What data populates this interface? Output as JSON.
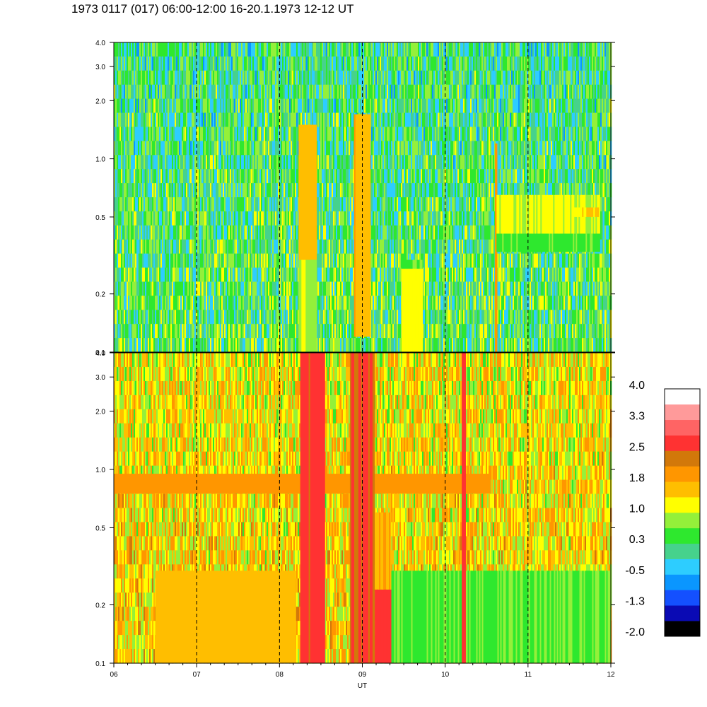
{
  "title": "1973 0117 (017) 06:00-12:00 16-20.1.1973  12-12 UT",
  "chart_data": {
    "type": "heatmap",
    "xlabel": "UT",
    "x_ticks": [
      "06",
      "07",
      "08",
      "09",
      "10",
      "11",
      "12"
    ],
    "xlim": [
      6,
      12
    ],
    "y_scale": "log",
    "panels": [
      {
        "id": "top",
        "ylim": [
          0.1,
          4.0
        ],
        "y_ticks": [
          "0.1",
          "0.2",
          "0.5",
          "1.0",
          "2.0",
          "3.0",
          "4.0"
        ],
        "y_tick_values": [
          0.1,
          0.2,
          0.5,
          1.0,
          2.0,
          3.0,
          4.0
        ],
        "background_level": 0.2,
        "features": [
          {
            "x0": 8.23,
            "x1": 8.45,
            "y0": 0.1,
            "y1": 1.5,
            "level": 1.5
          },
          {
            "x0": 8.23,
            "x1": 8.45,
            "y0": 0.1,
            "y1": 0.3,
            "level": 1.0
          },
          {
            "x0": 8.9,
            "x1": 9.1,
            "y0": 0.12,
            "y1": 1.7,
            "level": 1.6
          },
          {
            "x0": 9.47,
            "x1": 9.73,
            "y0": 0.1,
            "y1": 0.27,
            "level": 1.2
          },
          {
            "x0": 9.47,
            "x1": 9.73,
            "y0": 0.27,
            "y1": 0.3,
            "level": 0.6
          },
          {
            "x0": 10.6,
            "x1": 10.63,
            "y0": 0.1,
            "y1": 1.2,
            "level": 1.9
          },
          {
            "x0": 10.62,
            "x1": 11.87,
            "y0": 0.33,
            "y1": 0.41,
            "level": 0.5
          },
          {
            "x0": 10.62,
            "x1": 11.87,
            "y0": 0.41,
            "y1": 0.65,
            "level": 1.05
          },
          {
            "x0": 11.55,
            "x1": 11.87,
            "y0": 0.5,
            "y1": 0.56,
            "level": 1.4
          }
        ]
      },
      {
        "id": "bottom",
        "ylim": [
          0.1,
          4.0
        ],
        "y_ticks": [
          "0.1",
          "0.2",
          "0.5",
          "1.0",
          "2.0",
          "3.0",
          "4.0"
        ],
        "y_tick_values": [
          0.1,
          0.2,
          0.5,
          1.0,
          2.0,
          3.0,
          4.0
        ],
        "background_level": 1.25,
        "features": [
          {
            "x0": 6.0,
            "x1": 10.55,
            "y0": 0.75,
            "y1": 0.95,
            "level": 1.95
          },
          {
            "x0": 8.25,
            "x1": 8.55,
            "y0": 0.1,
            "y1": 4.0,
            "level": 2.65
          },
          {
            "x0": 8.85,
            "x1": 9.15,
            "y0": 0.1,
            "y1": 4.0,
            "level": 2.6
          },
          {
            "x0": 9.15,
            "x1": 9.35,
            "y0": 0.1,
            "y1": 0.24,
            "level": 2.7
          },
          {
            "x0": 9.15,
            "x1": 9.35,
            "y0": 0.24,
            "y1": 0.6,
            "level": 1.7
          },
          {
            "x0": 9.35,
            "x1": 12.0,
            "y0": 0.1,
            "y1": 0.3,
            "level": 0.6
          },
          {
            "x0": 10.2,
            "x1": 10.25,
            "y0": 0.1,
            "y1": 4.0,
            "level": 2.7
          },
          {
            "x0": 6.5,
            "x1": 8.2,
            "y0": 0.1,
            "y1": 0.3,
            "level": 1.55
          }
        ]
      }
    ],
    "colorbar": {
      "labels": [
        "4.0",
        "3.3",
        "2.5",
        "1.8",
        "1.0",
        "0.3",
        "-0.5",
        "-1.3",
        "-2.0"
      ],
      "range": [
        -2.0,
        4.0
      ],
      "colors": [
        "#000000",
        "#0a0ab4",
        "#1450ff",
        "#0a96ff",
        "#2dcdff",
        "#46d28c",
        "#2ee82e",
        "#94f03a",
        "#ffff00",
        "#ffbe00",
        "#ff9600",
        "#d2780a",
        "#ff3232",
        "#ff6464",
        "#ff9a9a",
        "#ffffff"
      ]
    }
  }
}
